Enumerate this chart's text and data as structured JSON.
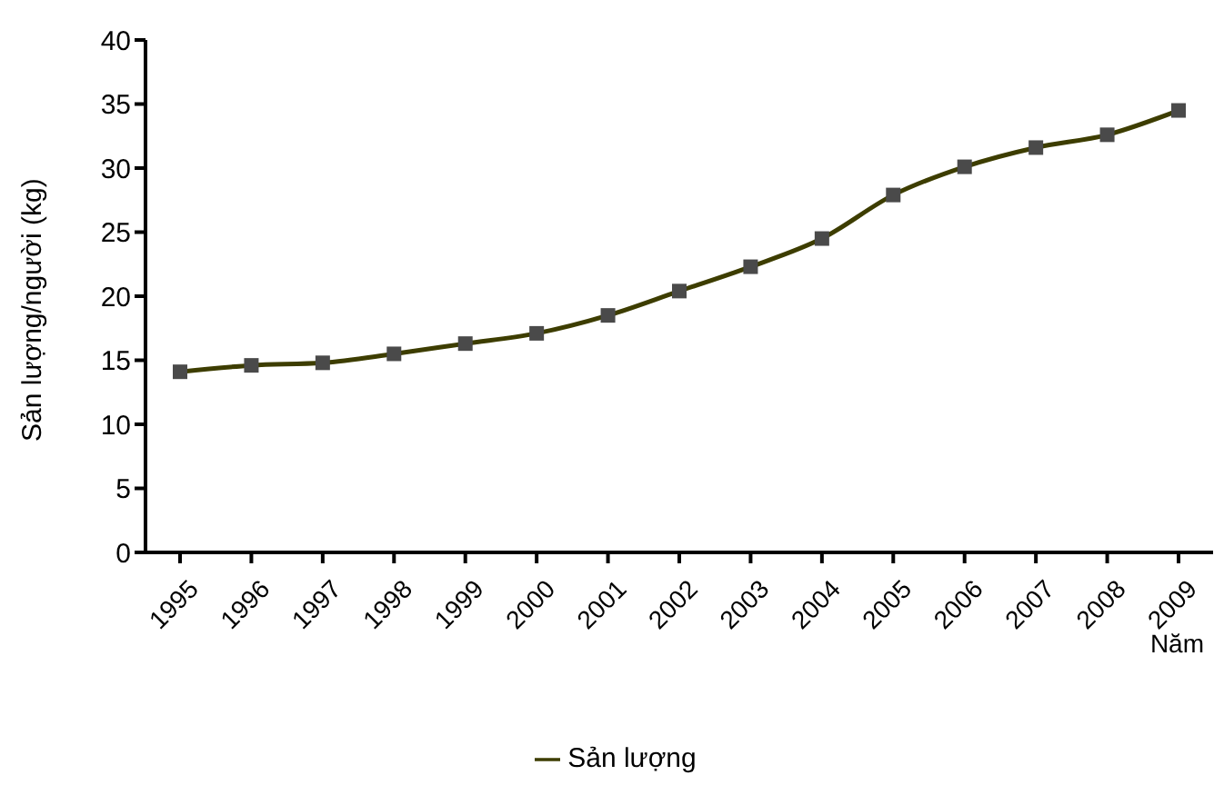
{
  "chart_data": {
    "type": "line",
    "xlabel": "Năm",
    "ylabel": "Sản lượng/người (kg)",
    "categories": [
      "1995",
      "1996",
      "1997",
      "1998",
      "1999",
      "2000",
      "2001",
      "2002",
      "2003",
      "2004",
      "2005",
      "2006",
      "2007",
      "2008",
      "2009"
    ],
    "series": [
      {
        "name": "Sản lượng",
        "color": "#3d3d00",
        "values": [
          14.1,
          14.6,
          14.8,
          15.5,
          16.3,
          17.1,
          18.5,
          20.4,
          22.3,
          24.5,
          27.9,
          30.1,
          31.6,
          32.6,
          34.5
        ]
      }
    ],
    "ylim": [
      0,
      40
    ],
    "yticks": [
      0,
      5,
      10,
      15,
      20,
      25,
      30,
      35,
      40
    ],
    "grid": false,
    "legend": "bottom",
    "marker": "square",
    "line_style": "solid"
  }
}
